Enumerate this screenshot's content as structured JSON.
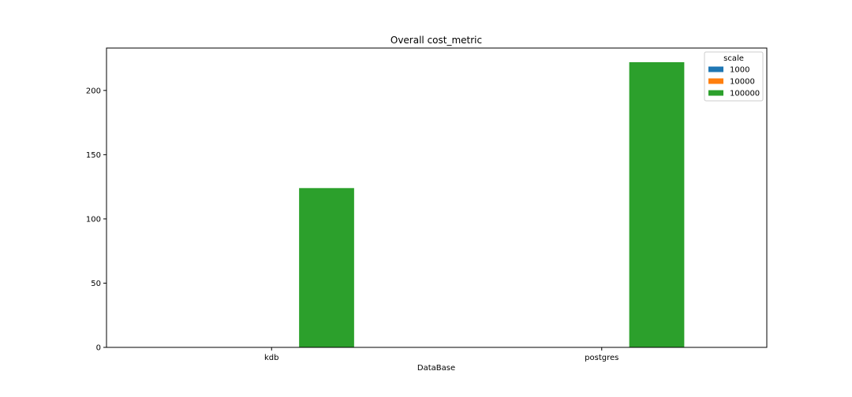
{
  "chart_data": {
    "type": "bar",
    "title": "Overall cost_metric",
    "xlabel": "DataBase",
    "ylabel": "",
    "categories": [
      "kdb",
      "postgres"
    ],
    "series": [
      {
        "name": "1000",
        "color": "#1f77b4",
        "values": [
          0,
          0
        ]
      },
      {
        "name": "10000",
        "color": "#ff7f0e",
        "values": [
          0,
          0
        ]
      },
      {
        "name": "100000",
        "color": "#2ca02c",
        "values": [
          124,
          222
        ]
      }
    ],
    "ylim": [
      0,
      233
    ],
    "yticks": [
      0,
      50,
      100,
      150,
      200
    ],
    "legend": {
      "title": "scale",
      "placement": "top-right"
    },
    "grid": false
  }
}
